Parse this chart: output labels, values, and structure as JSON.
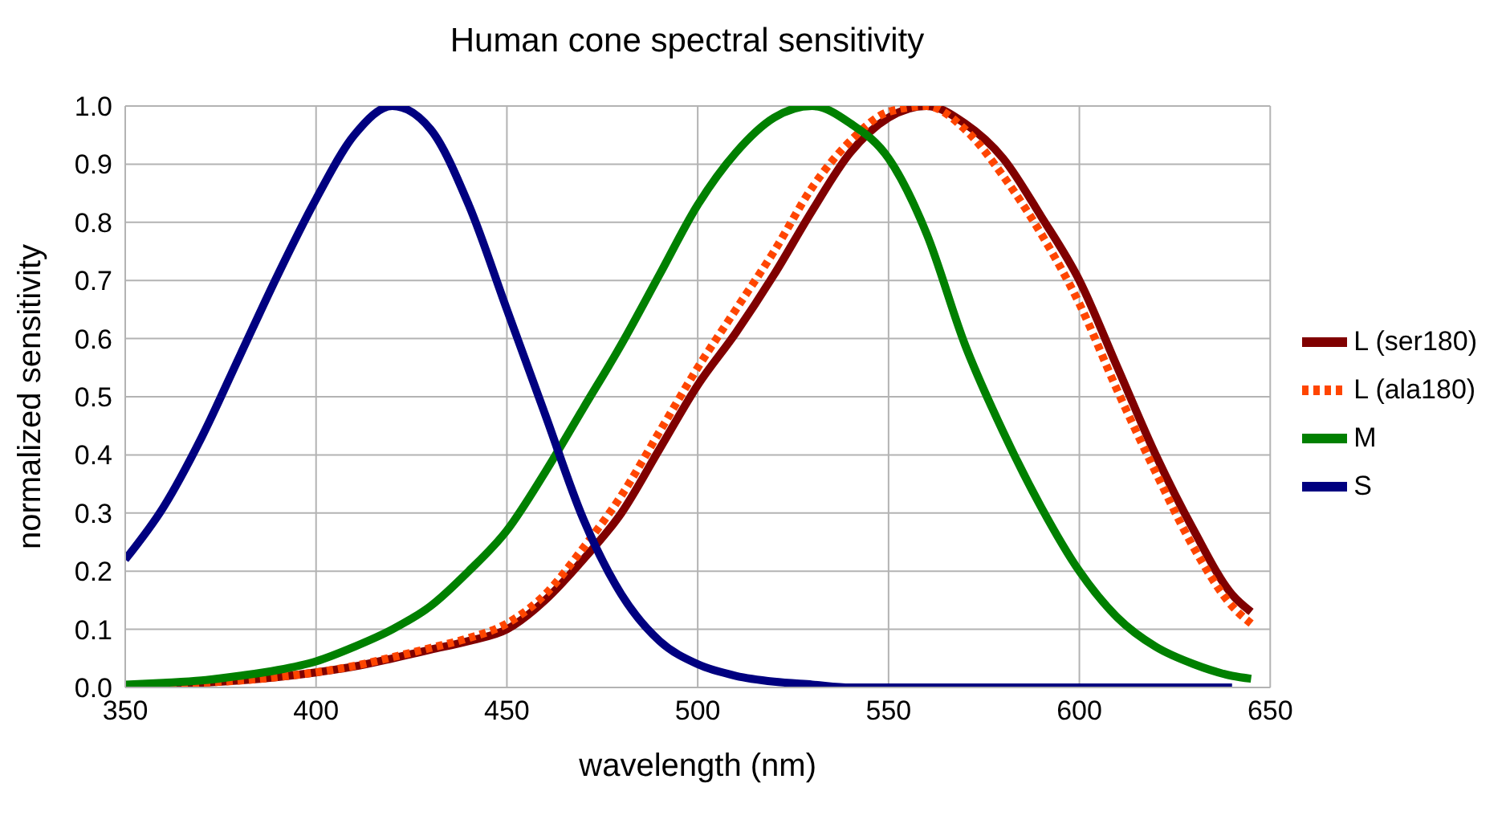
{
  "chart_data": {
    "type": "line",
    "title": "Human cone spectral sensitivity",
    "xlabel": "wavelength (nm)",
    "ylabel": "normalized sensitivity",
    "x": [
      350,
      360,
      370,
      380,
      390,
      400,
      410,
      420,
      430,
      440,
      450,
      460,
      470,
      480,
      490,
      500,
      510,
      520,
      530,
      540,
      550,
      560,
      570,
      580,
      590,
      600,
      610,
      620,
      630,
      640,
      645
    ],
    "xlim": [
      350,
      650
    ],
    "xticks": [
      350,
      400,
      450,
      500,
      550,
      600,
      650
    ],
    "ylim": [
      0,
      1
    ],
    "yticks": [
      {
        "value": 0,
        "label": "0.0"
      },
      0.1,
      0.2,
      0.3,
      0.4,
      0.5,
      0.6,
      0.7,
      0.8,
      0.9,
      {
        "value": 1,
        "label": "1.0"
      }
    ],
    "grid": true,
    "legend": "right",
    "marker": "none",
    "series": [
      {
        "name": "L (ser180)",
        "color": "#800000",
        "line_style": "solid",
        "values": [
          0.003,
          0.005,
          0.008,
          0.012,
          0.018,
          0.026,
          0.036,
          0.05,
          0.065,
          0.08,
          0.1,
          0.15,
          0.22,
          0.3,
          0.41,
          0.52,
          0.61,
          0.71,
          0.82,
          0.92,
          0.98,
          1.0,
          0.97,
          0.91,
          0.81,
          0.7,
          0.55,
          0.4,
          0.27,
          0.16,
          0.13
        ]
      },
      {
        "name": "L (ala180)",
        "color": "#ff4500",
        "line_style": "dotted",
        "values": [
          0.003,
          0.005,
          0.008,
          0.012,
          0.018,
          0.026,
          0.037,
          0.052,
          0.068,
          0.085,
          0.11,
          0.16,
          0.24,
          0.33,
          0.44,
          0.55,
          0.65,
          0.75,
          0.86,
          0.94,
          0.99,
          1.0,
          0.96,
          0.88,
          0.78,
          0.66,
          0.51,
          0.37,
          0.24,
          0.14,
          0.11
        ]
      },
      {
        "name": "M",
        "color": "#008000",
        "line_style": "solid",
        "values": [
          0.005,
          0.008,
          0.012,
          0.02,
          0.03,
          0.045,
          0.07,
          0.1,
          0.14,
          0.2,
          0.27,
          0.37,
          0.48,
          0.59,
          0.71,
          0.83,
          0.92,
          0.98,
          1.0,
          0.97,
          0.91,
          0.78,
          0.59,
          0.44,
          0.31,
          0.2,
          0.12,
          0.07,
          0.04,
          0.02,
          0.015
        ]
      },
      {
        "name": "S",
        "color": "#000080",
        "line_style": "solid",
        "values": [
          0.22,
          0.31,
          0.43,
          0.57,
          0.71,
          0.84,
          0.95,
          1.0,
          0.96,
          0.83,
          0.65,
          0.47,
          0.29,
          0.16,
          0.08,
          0.04,
          0.02,
          0.01,
          0.005,
          0,
          0,
          0,
          0,
          0,
          0,
          0,
          0,
          0,
          0,
          0,
          null
        ]
      }
    ]
  }
}
